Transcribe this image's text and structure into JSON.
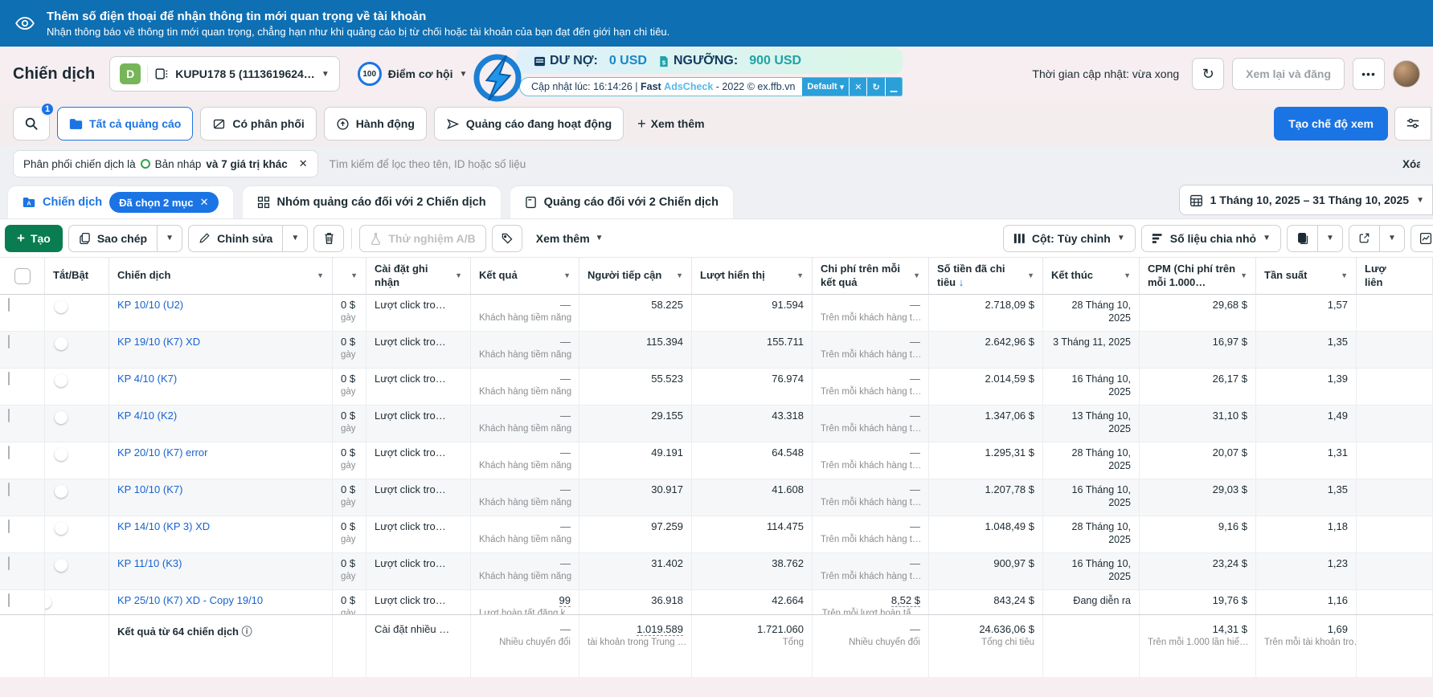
{
  "banner": {
    "title": "Thêm số điện thoại để nhận thông tin mới quan trọng về tài khoản",
    "subtitle": "Nhận thông báo về thông tin mới quan trọng, chẳng hạn như khi quảng cáo bị từ chối hoặc tài khoản của bạn đạt đến giới hạn chi tiêu."
  },
  "header": {
    "page_title": "Chiến dịch",
    "account": {
      "badge": "D",
      "name": "KUPU178 5 (1113619624…"
    },
    "opportunity": {
      "score": "100",
      "label": "Điểm cơ hội"
    },
    "widget": {
      "du_no_label": "DƯ NỢ:",
      "du_no_value": "0 USD",
      "nguong_label": "NGƯỠNG:",
      "nguong_value": "900 USD",
      "update_prefix": "Cập nhật lúc: 16:14:26 | ",
      "fast": "Fast",
      "adscheck": "AdsCheck",
      "update_suffix": " - 2022 © ex.ffb.vn",
      "default_btn": "Default",
      "btn1": "✕",
      "btn2": "↻",
      "btn3": "▁"
    },
    "updated_text": "Thời gian cập nhật: vừa xong",
    "refresh_glyph": "↻",
    "review_button": "Xem lại và đăng",
    "more_button": "•••"
  },
  "filters": {
    "search_badge": "1",
    "chips": [
      {
        "label": "Tất cả quảng cáo"
      },
      {
        "label": "Có phân phối"
      },
      {
        "label": "Hành động"
      },
      {
        "label": "Quảng cáo đang hoạt động"
      }
    ],
    "see_more": "Xem thêm",
    "create_view": "Tạo chế độ xem"
  },
  "applied": {
    "pill_prefix": "Phân phối chiến dịch là",
    "pill_value": "Bản nháp",
    "pill_bold": "và 7 giá trị khác",
    "search_placeholder": "Tìm kiếm để lọc theo tên, ID hoặc số liệu",
    "clear": "Xóa"
  },
  "tabs": {
    "campaigns": "Chiến dịch",
    "selected_badge": "Đã chọn 2 mục",
    "adsets": "Nhóm quảng cáo đối với 2 Chiến dịch",
    "ads": "Quảng cáo đối với 2 Chiến dịch",
    "date_range": "1 Tháng 10, 2025 – 31 Tháng 10, 2025"
  },
  "toolbar": {
    "create": "Tạo",
    "duplicate": "Sao chép",
    "edit": "Chỉnh sửa",
    "ab_test": "Thử nghiệm A/B",
    "see_more": "Xem thêm",
    "columns": "Cột: Tùy chỉnh",
    "breakdown": "Số liệu chia nhỏ"
  },
  "table": {
    "headers": {
      "onoff": "Tắt/Bật",
      "campaign": "Chiến dịch",
      "attribution": "Cài đặt ghi nhận",
      "results": "Kết quả",
      "reach": "Người tiếp cận",
      "impressions": "Lượt hiển thị",
      "cost_per_result": "Chi phí trên mỗi kết quả",
      "spent": "Số tiền đã chi tiêu",
      "end": "Kết thúc",
      "cpm": "CPM (Chi phí trên mỗi 1.000…",
      "frequency": "Tần suất",
      "last_line1": "Lượ",
      "last_line2": "liên"
    },
    "shared": {
      "budget_top": "0 $",
      "budget_bottom": "gày",
      "attribution": "Lượt click tro…"
    },
    "rows": [
      {
        "name": "KP 10/10 (U2)",
        "on": false,
        "results": "—",
        "results_sub": "Khách hàng tiềm năng",
        "reach": "58.225",
        "impressions": "91.594",
        "cost": "—",
        "cost_sub": "Trên mỗi khách hàng t…",
        "spent": "2.718,09 $",
        "end": "28 Tháng 10, 2025",
        "cpm": "29,68 $",
        "freq": "1,57",
        "underline": false
      },
      {
        "name": "KP 19/10 (K7) XD",
        "on": false,
        "results": "—",
        "results_sub": "Khách hàng tiềm năng",
        "reach": "115.394",
        "impressions": "155.711",
        "cost": "—",
        "cost_sub": "Trên mỗi khách hàng t…",
        "spent": "2.642,96 $",
        "end": "3 Tháng 11, 2025",
        "cpm": "16,97 $",
        "freq": "1,35",
        "underline": false
      },
      {
        "name": "KP 4/10 (K7)",
        "on": false,
        "results": "—",
        "results_sub": "Khách hàng tiềm năng",
        "reach": "55.523",
        "impressions": "76.974",
        "cost": "—",
        "cost_sub": "Trên mỗi khách hàng t…",
        "spent": "2.014,59 $",
        "end": "16 Tháng 10, 2025",
        "cpm": "26,17 $",
        "freq": "1,39",
        "underline": false
      },
      {
        "name": "KP 4/10 (K2)",
        "on": false,
        "results": "—",
        "results_sub": "Khách hàng tiềm năng",
        "reach": "29.155",
        "impressions": "43.318",
        "cost": "—",
        "cost_sub": "Trên mỗi khách hàng t…",
        "spent": "1.347,06 $",
        "end": "13 Tháng 10, 2025",
        "cpm": "31,10 $",
        "freq": "1,49",
        "underline": false
      },
      {
        "name": "KP 20/10 (K7) error",
        "on": false,
        "results": "—",
        "results_sub": "Khách hàng tiềm năng",
        "reach": "49.191",
        "impressions": "64.548",
        "cost": "—",
        "cost_sub": "Trên mỗi khách hàng t…",
        "spent": "1.295,31 $",
        "end": "28 Tháng 10, 2025",
        "cpm": "20,07 $",
        "freq": "1,31",
        "underline": false
      },
      {
        "name": "KP 10/10 (K7)",
        "on": false,
        "results": "—",
        "results_sub": "Khách hàng tiềm năng",
        "reach": "30.917",
        "impressions": "41.608",
        "cost": "—",
        "cost_sub": "Trên mỗi khách hàng t…",
        "spent": "1.207,78 $",
        "end": "16 Tháng 10, 2025",
        "cpm": "29,03 $",
        "freq": "1,35",
        "underline": false
      },
      {
        "name": "KP 14/10 (KP 3) XD",
        "on": false,
        "results": "—",
        "results_sub": "Khách hàng tiềm năng",
        "reach": "97.259",
        "impressions": "114.475",
        "cost": "—",
        "cost_sub": "Trên mỗi khách hàng t…",
        "spent": "1.048,49 $",
        "end": "28 Tháng 10, 2025",
        "cpm": "9,16 $",
        "freq": "1,18",
        "underline": false
      },
      {
        "name": "KP 11/10 (K3)",
        "on": false,
        "results": "—",
        "results_sub": "Khách hàng tiềm năng",
        "reach": "31.402",
        "impressions": "38.762",
        "cost": "—",
        "cost_sub": "Trên mỗi khách hàng t…",
        "spent": "900,97 $",
        "end": "16 Tháng 10, 2025",
        "cpm": "23,24 $",
        "freq": "1,23",
        "underline": false
      },
      {
        "name": "KP 25/10 (K7) XD - Copy 19/10",
        "on": true,
        "results": "99",
        "results_sub": "Lượt hoàn tất đăng k…",
        "reach": "36.918",
        "impressions": "42.664",
        "cost": "8,52 $",
        "cost_sub": "Trên mỗi lượt hoàn tấ…",
        "spent": "843,24 $",
        "end": "Đang diễn ra",
        "cpm": "19,76 $",
        "freq": "1,16",
        "underline": true
      }
    ],
    "footer": {
      "label": "Kết quả từ 64 chiến dịch",
      "attribution": "Cài đặt nhiều …",
      "results": "—",
      "results_sub": "Nhiều chuyển đổi",
      "reach": "1.019.589",
      "reach_sub": "tài khoản trong Trung …",
      "impressions": "1.721.060",
      "impressions_sub": "Tổng",
      "cost": "—",
      "cost_sub": "Nhiều chuyển đổi",
      "spent": "24.636,06 $",
      "spent_sub": "Tổng chi tiêu",
      "cpm": "14,31 $",
      "cpm_sub": "Trên mỗi 1.000 lần hiể…",
      "freq": "1,69",
      "freq_sub": "Trên mỗi tài khoản tro…"
    }
  },
  "colors": {
    "accent_blue": "#1b74e4",
    "banner_blue": "#0e6fb3",
    "green_button": "#0a7c51",
    "link_blue": "#1763cf"
  }
}
